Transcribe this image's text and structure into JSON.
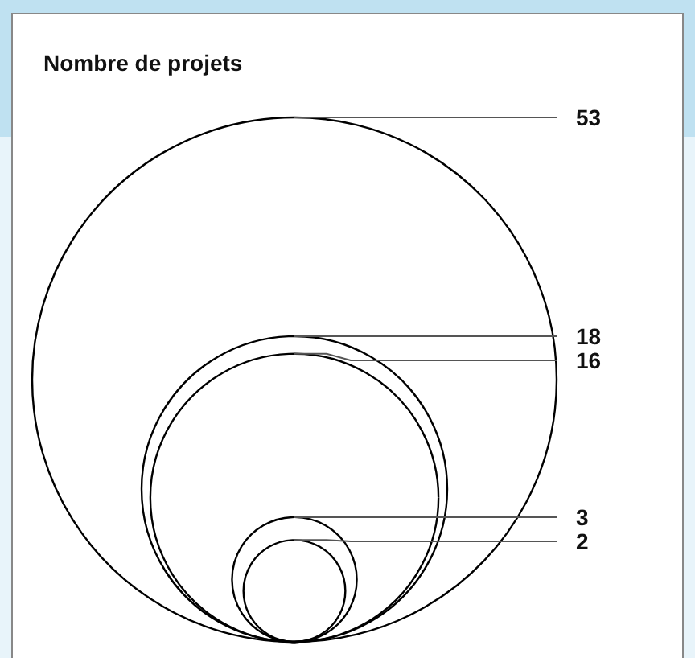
{
  "chart_data": {
    "type": "other",
    "title": "Nombre de projets",
    "values": [
      53,
      18,
      16,
      3,
      2
    ],
    "data_labels": true
  }
}
